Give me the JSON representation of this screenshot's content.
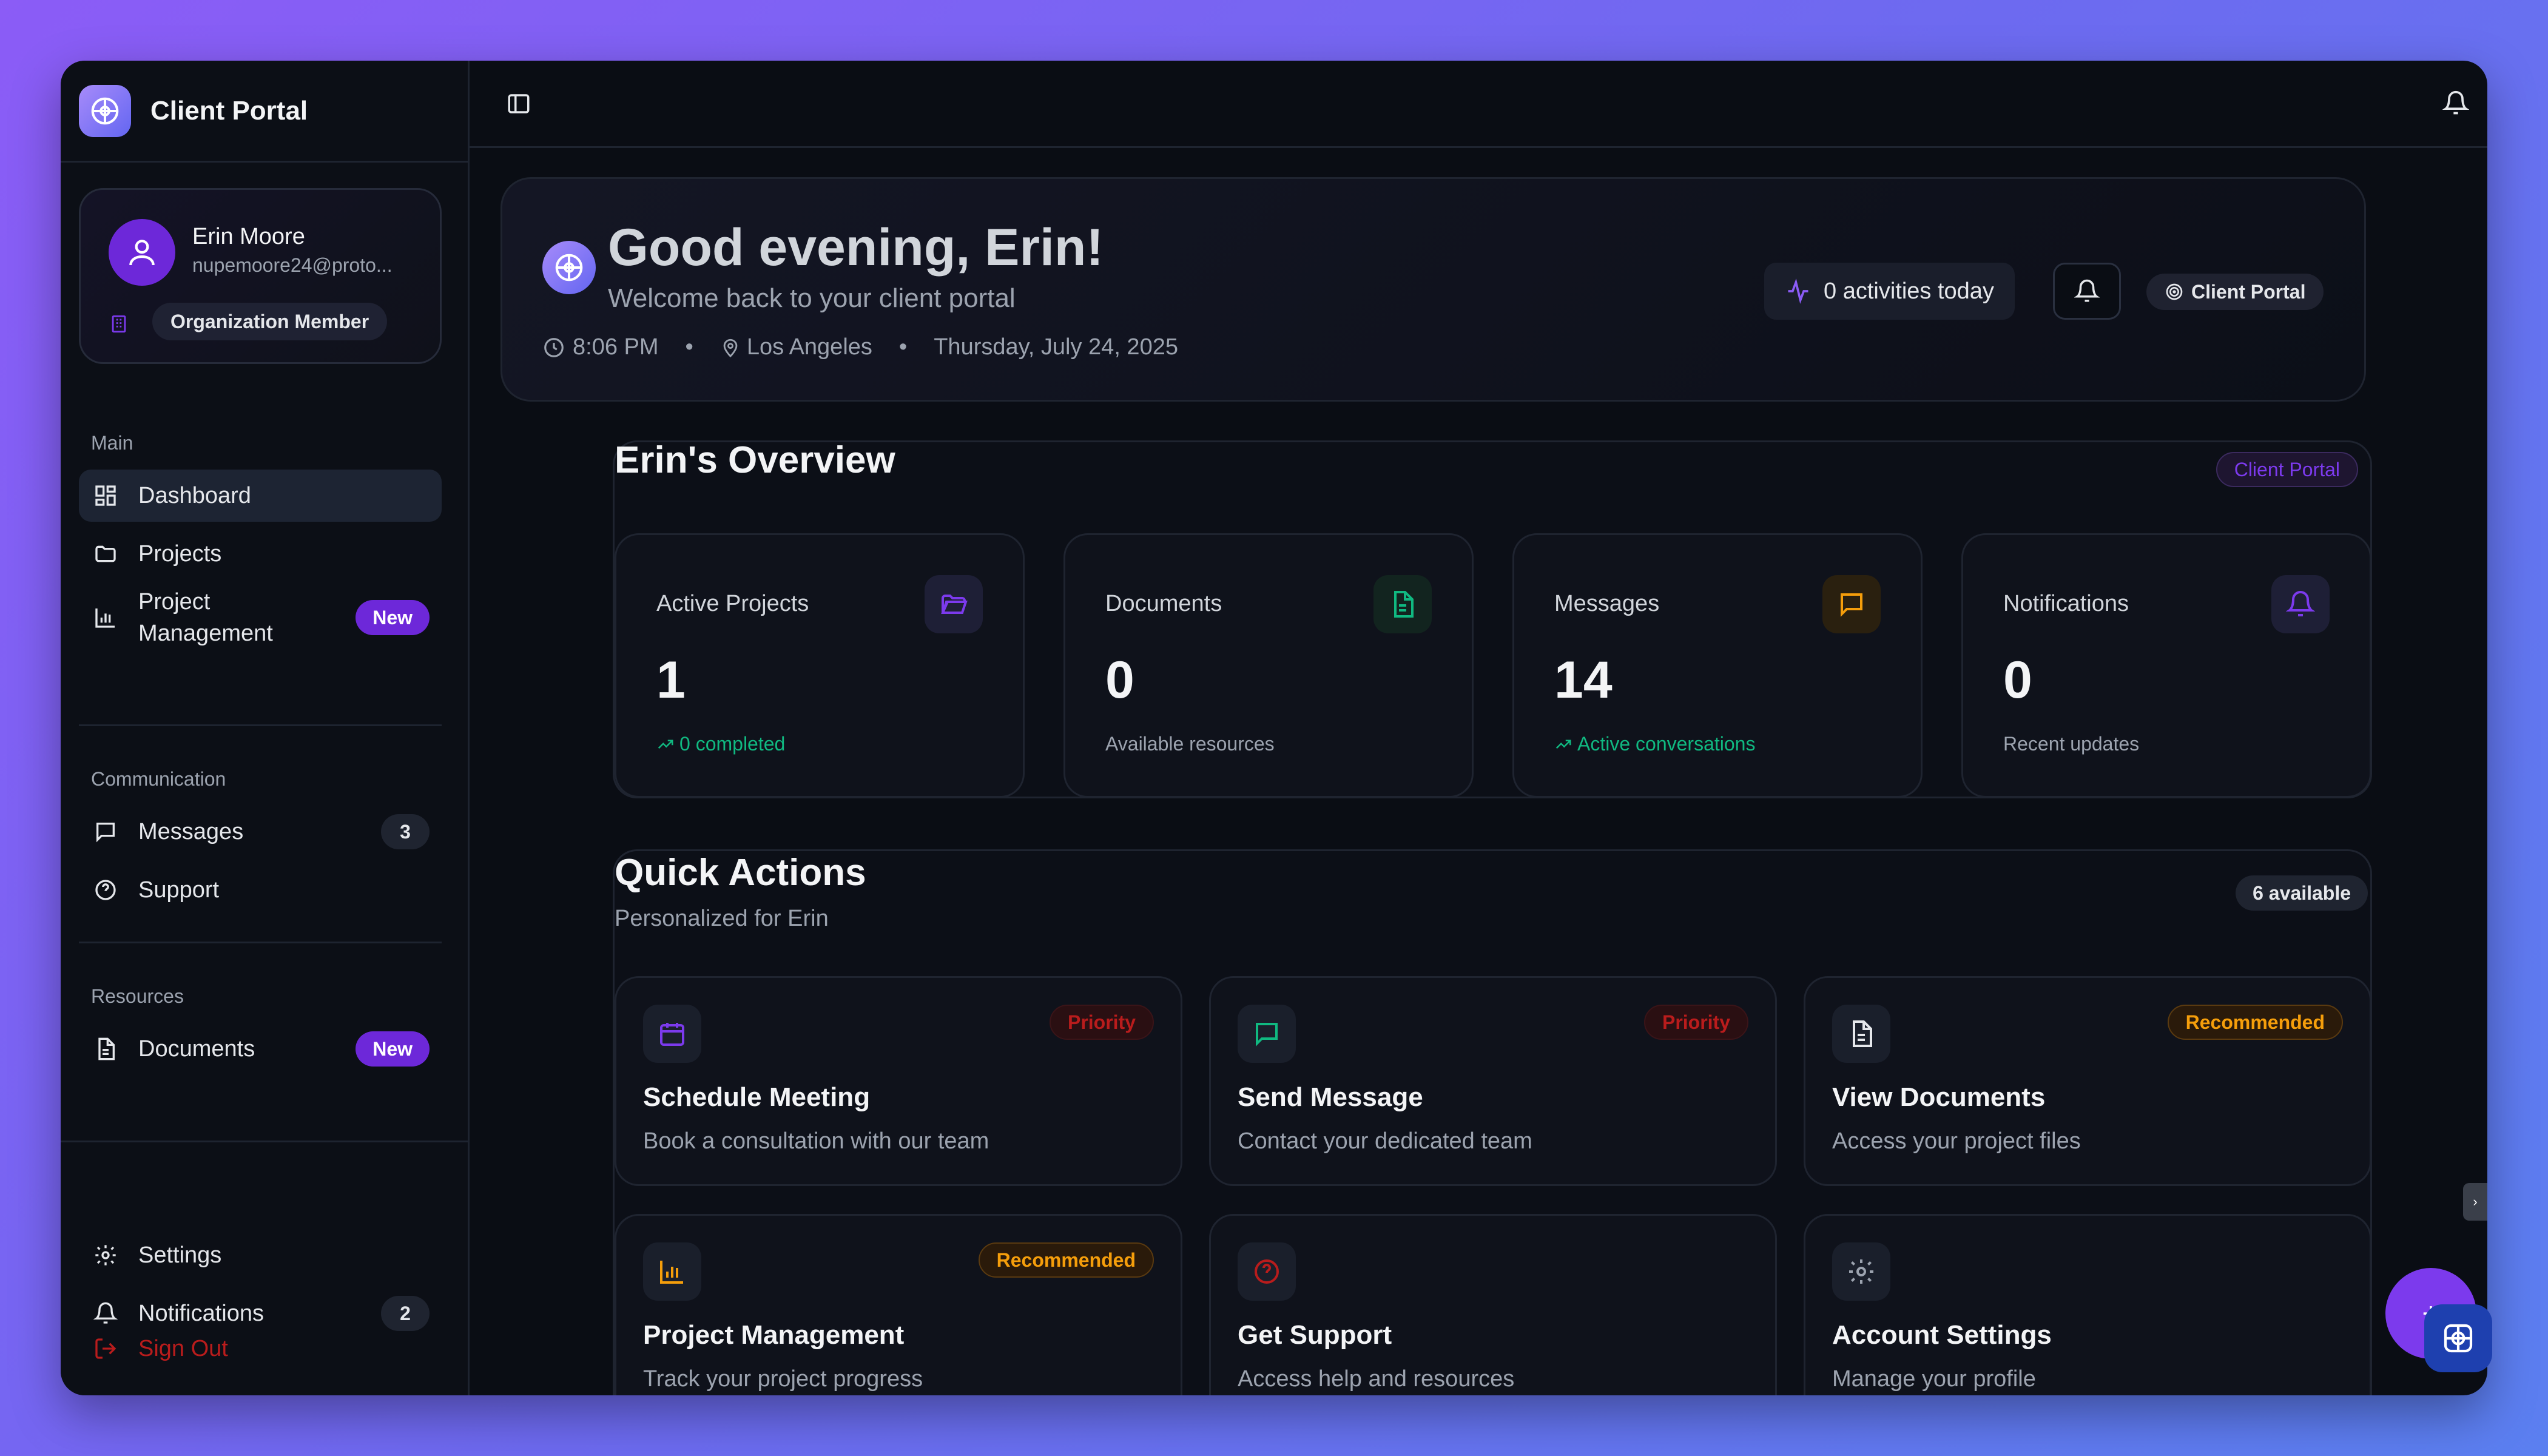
{
  "app": {
    "title": "Client Portal"
  },
  "profile": {
    "name": "Erin Moore",
    "email": "nupemoore24@proto...",
    "role": "Organization Member"
  },
  "sidebar": {
    "sections": {
      "main": "Main",
      "communication": "Communication",
      "resources": "Resources"
    },
    "items": {
      "dashboard": "Dashboard",
      "projects": "Projects",
      "project_management": "Project Management",
      "project_management_badge": "New",
      "messages": "Messages",
      "messages_count": "3",
      "support": "Support",
      "documents": "Documents",
      "documents_badge": "New",
      "settings": "Settings",
      "notifications": "Notifications",
      "notifications_count": "2",
      "sign_out": "Sign Out"
    }
  },
  "greeting": {
    "title": "Good evening, Erin!",
    "subtitle": "Welcome back to your client portal",
    "time": "8:06 PM",
    "location": "Los Angeles",
    "date": "Thursday, July 24, 2025",
    "activities": "0 activities today",
    "portal_chip": "Client Portal"
  },
  "overview": {
    "title": "Erin's Overview",
    "chip": "Client Portal",
    "stats": [
      {
        "label": "Active Projects",
        "value": "1",
        "foot": "0 completed"
      },
      {
        "label": "Documents",
        "value": "0",
        "foot": "Available resources"
      },
      {
        "label": "Messages",
        "value": "14",
        "foot": "Active conversations"
      },
      {
        "label": "Notifications",
        "value": "0",
        "foot": "Recent updates"
      }
    ]
  },
  "quick_actions": {
    "title": "Quick Actions",
    "subtitle": "Personalized for Erin",
    "available": "6 available",
    "cards": [
      {
        "title": "Schedule Meeting",
        "desc": "Book a consultation with our team",
        "tag": "Priority"
      },
      {
        "title": "Send Message",
        "desc": "Contact your dedicated team",
        "tag": "Priority"
      },
      {
        "title": "View Documents",
        "desc": "Access your project files",
        "tag": "Recommended"
      },
      {
        "title": "Project Management",
        "desc": "Track your project progress",
        "tag": "Recommended"
      },
      {
        "title": "Get Support",
        "desc": "Access help and resources",
        "tag": ""
      },
      {
        "title": "Account Settings",
        "desc": "Manage your profile",
        "tag": ""
      }
    ]
  },
  "fab": {
    "label": "+"
  },
  "colors": {
    "accent": "#6d28d9",
    "priority": "#b91c1c",
    "recommended": "#f59e0b",
    "success": "#10b981"
  }
}
